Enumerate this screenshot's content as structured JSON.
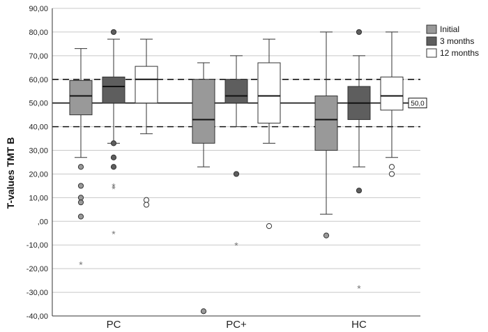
{
  "chart_data": {
    "type": "boxplot",
    "title": "",
    "xlabel": "",
    "ylabel": "T-values TMT B",
    "ylim": [
      -40,
      90
    ],
    "yticks": [
      -40,
      -30,
      -20,
      -10,
      0,
      10,
      20,
      30,
      40,
      50,
      60,
      70,
      80,
      90
    ],
    "ytick_labels": [
      "-40,00",
      "-30,00",
      "-20,00",
      "-10,00",
      ",00",
      "10,00",
      "20,00",
      "30,00",
      "40,00",
      "50,00",
      "60,00",
      "70,00",
      "80,00",
      "90,00"
    ],
    "grid": true,
    "reference_lines": [
      {
        "value": 50,
        "style": "solid",
        "label": "50,0"
      },
      {
        "value": 60,
        "style": "dashed"
      },
      {
        "value": 40,
        "style": "dashed"
      }
    ],
    "categories": [
      "PC",
      "PC+",
      "HC"
    ],
    "legend": {
      "position": "right-top",
      "entries": [
        "Initial",
        "3 months",
        "12 months"
      ]
    },
    "series": [
      {
        "name": "Initial",
        "color": "#999999",
        "boxes": [
          {
            "min": 27,
            "q1": 45,
            "median": 53,
            "q3": 59.5,
            "max": 73,
            "outliers": [
              23,
              15,
              10,
              8,
              2
            ],
            "extremes": [
              -18
            ]
          },
          {
            "min": 23,
            "q1": 33,
            "median": 43,
            "q3": 60,
            "max": 67,
            "outliers": [
              -38
            ],
            "extremes": []
          },
          {
            "min": 3,
            "q1": 30,
            "median": 43,
            "q3": 53,
            "max": 80,
            "outliers": [
              -6
            ],
            "extremes": []
          }
        ]
      },
      {
        "name": "3 months",
        "color": "#5e5e5e",
        "boxes": [
          {
            "min": 33,
            "q1": 50,
            "median": 57,
            "q3": 61,
            "max": 77,
            "outliers": [
              80,
              33,
              27,
              23
            ],
            "extremes": [
              15,
              14,
              -5
            ]
          },
          {
            "min": 40,
            "q1": 50,
            "median": 53,
            "q3": 60,
            "max": 70,
            "outliers": [
              20
            ],
            "extremes": [
              -10
            ]
          },
          {
            "min": 23,
            "q1": 43,
            "median": 50,
            "q3": 57,
            "max": 70,
            "outliers": [
              80,
              13
            ],
            "extremes": [
              -28
            ]
          }
        ]
      },
      {
        "name": "12 months",
        "color": "#ffffff",
        "boxes": [
          {
            "min": 37,
            "q1": 50,
            "median": 60,
            "q3": 65.5,
            "max": 77,
            "outliers": [
              9,
              7
            ],
            "extremes": []
          },
          {
            "min": 33,
            "q1": 41.5,
            "median": 53,
            "q3": 67,
            "max": 77,
            "outliers": [
              -2
            ],
            "extremes": []
          },
          {
            "min": 27,
            "q1": 47,
            "median": 53,
            "q3": 61,
            "max": 80,
            "outliers": [
              23,
              20
            ],
            "extremes": []
          }
        ]
      }
    ]
  }
}
